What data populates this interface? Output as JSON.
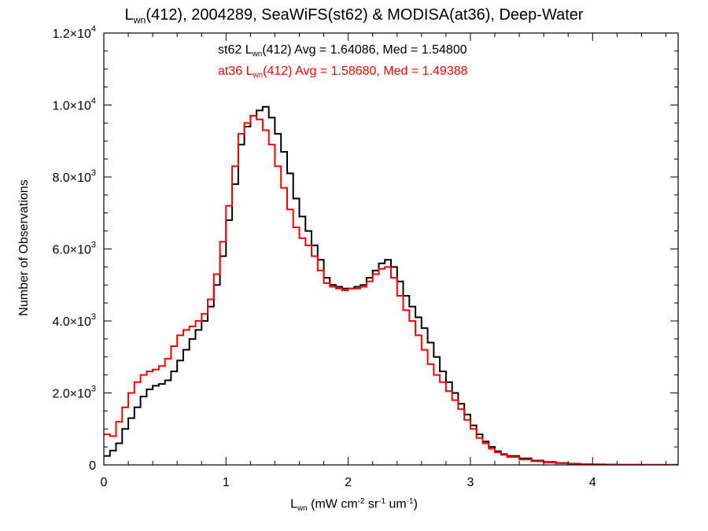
{
  "title": {
    "l_letter": "L",
    "l_sub": "wn",
    "rest": "(412), 2004289, SeaWiFS(st62) & MODISA(at36), Deep-Water"
  },
  "stats": [
    {
      "prefix": "st62 L",
      "sub": "wn",
      "rest": "(412) Avg = 1.64086, Med = 1.54800",
      "color": "#000000"
    },
    {
      "prefix": "at36 L",
      "sub": "wn",
      "rest": "(412) Avg = 1.58680, Med = 1.49388",
      "color": "#ff0000"
    }
  ],
  "axes": {
    "xlabel": {
      "l": "L",
      "sub": "wn",
      "open": " (mW cm",
      "sup1": "-2",
      "mid1": " sr",
      "sup2": "-1",
      "mid2": " um",
      "sup3": "-1",
      "close": ")"
    },
    "ylabel": "Number of Observations"
  },
  "chart_data": {
    "type": "line",
    "step": true,
    "xlim": [
      0,
      4.7
    ],
    "ylim": [
      0,
      12000
    ],
    "xticks": [
      0,
      1,
      2,
      3,
      4
    ],
    "xtick_labels": [
      "0",
      "1",
      "2",
      "3",
      "4"
    ],
    "yticks": [
      0,
      2000,
      4000,
      6000,
      8000,
      10000,
      12000
    ],
    "ytick_labels": [
      {
        "mant": "0",
        "exp": ""
      },
      {
        "mant": "2.0×10",
        "exp": "3"
      },
      {
        "mant": "4.0×10",
        "exp": "3"
      },
      {
        "mant": "6.0×10",
        "exp": "3"
      },
      {
        "mant": "8.0×10",
        "exp": "3"
      },
      {
        "mant": "1.0×10",
        "exp": "4"
      },
      {
        "mant": "1.2×10",
        "exp": "4"
      }
    ],
    "grid": false,
    "series": [
      {
        "name": "st62",
        "color": "#000000",
        "x": [
          0,
          0.05,
          0.1,
          0.15,
          0.2,
          0.25,
          0.3,
          0.35,
          0.4,
          0.45,
          0.5,
          0.55,
          0.6,
          0.65,
          0.7,
          0.75,
          0.8,
          0.85,
          0.9,
          0.95,
          1.0,
          1.05,
          1.1,
          1.15,
          1.2,
          1.25,
          1.3,
          1.35,
          1.4,
          1.45,
          1.5,
          1.55,
          1.6,
          1.65,
          1.7,
          1.75,
          1.8,
          1.85,
          1.9,
          1.95,
          2.0,
          2.05,
          2.1,
          2.15,
          2.2,
          2.25,
          2.3,
          2.35,
          2.4,
          2.45,
          2.5,
          2.55,
          2.6,
          2.65,
          2.7,
          2.75,
          2.8,
          2.85,
          2.9,
          2.95,
          3.0,
          3.05,
          3.1,
          3.15,
          3.2,
          3.25,
          3.3,
          3.4,
          3.5,
          3.6,
          3.7,
          3.8,
          3.9,
          4.0,
          4.1,
          4.2,
          4.4,
          4.7
        ],
        "y": [
          250,
          400,
          600,
          1000,
          1300,
          1600,
          1900,
          2100,
          2200,
          2250,
          2350,
          2600,
          2900,
          3200,
          3500,
          3750,
          4000,
          4400,
          5000,
          5800,
          6800,
          7800,
          8900,
          9400,
          9700,
          9850,
          9950,
          9650,
          9200,
          8700,
          8100,
          7400,
          6900,
          6500,
          6100,
          5700,
          5200,
          5000,
          4950,
          4900,
          4900,
          4950,
          5000,
          5200,
          5400,
          5600,
          5700,
          5500,
          5100,
          4700,
          4400,
          4100,
          3800,
          3400,
          3000,
          2600,
          2300,
          2000,
          1700,
          1400,
          1100,
          850,
          650,
          500,
          380,
          300,
          250,
          180,
          120,
          80,
          55,
          35,
          22,
          15,
          10,
          6,
          3,
          0
        ]
      },
      {
        "name": "at36",
        "color": "#ff0000",
        "x": [
          0,
          0.05,
          0.1,
          0.15,
          0.2,
          0.25,
          0.3,
          0.35,
          0.4,
          0.45,
          0.5,
          0.55,
          0.6,
          0.65,
          0.7,
          0.75,
          0.8,
          0.85,
          0.9,
          0.95,
          1.0,
          1.05,
          1.1,
          1.15,
          1.2,
          1.25,
          1.3,
          1.35,
          1.4,
          1.45,
          1.5,
          1.55,
          1.6,
          1.65,
          1.7,
          1.75,
          1.8,
          1.85,
          1.9,
          1.95,
          2.0,
          2.05,
          2.1,
          2.15,
          2.2,
          2.25,
          2.3,
          2.35,
          2.4,
          2.45,
          2.5,
          2.55,
          2.6,
          2.65,
          2.7,
          2.75,
          2.8,
          2.85,
          2.9,
          2.95,
          3.0,
          3.05,
          3.1,
          3.15,
          3.2,
          3.25,
          3.3,
          3.4,
          3.5,
          3.6,
          3.7,
          3.8,
          3.9,
          4.0,
          4.1,
          4.2,
          4.4,
          4.7
        ],
        "y": [
          850,
          800,
          1200,
          1600,
          2000,
          2300,
          2500,
          2600,
          2650,
          2750,
          2950,
          3300,
          3600,
          3750,
          3850,
          4000,
          4200,
          4600,
          5300,
          6200,
          7200,
          8300,
          9200,
          9500,
          9700,
          9600,
          9300,
          8900,
          8300,
          7700,
          7100,
          6600,
          6300,
          6100,
          5800,
          5400,
          5050,
          4950,
          4900,
          4850,
          4900,
          4900,
          4950,
          5100,
          5300,
          5450,
          5500,
          5200,
          4700,
          4300,
          4000,
          3600,
          3200,
          2800,
          2500,
          2300,
          2050,
          1800,
          1550,
          1250,
          1000,
          750,
          600,
          450,
          350,
          280,
          220,
          150,
          100,
          65,
          45,
          30,
          18,
          12,
          8,
          5,
          2,
          0
        ]
      }
    ]
  }
}
